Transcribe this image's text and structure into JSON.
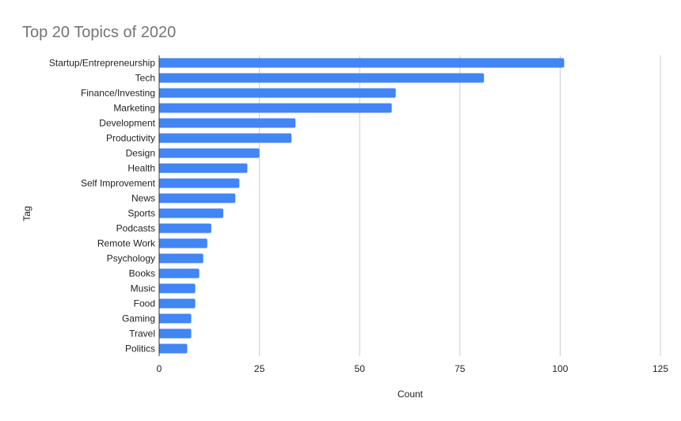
{
  "chart_data": {
    "type": "bar",
    "orientation": "horizontal",
    "title": "Top 20 Topics of 2020",
    "xlabel": "Count",
    "ylabel": "Tag",
    "xlim": [
      0,
      125
    ],
    "xticks": [
      0,
      25,
      50,
      75,
      100,
      125
    ],
    "grid": true,
    "legend": "none",
    "categories": [
      "Startup/Entrepreneurship",
      "Tech",
      "Finance/Investing",
      "Marketing",
      "Development",
      "Productivity",
      "Design",
      "Health",
      "Self Improvement",
      "News",
      "Sports",
      "Podcasts",
      "Remote Work",
      "Psychology",
      "Books",
      "Music",
      "Food",
      "Gaming",
      "Travel",
      "Politics"
    ],
    "values": [
      101,
      81,
      59,
      58,
      34,
      33,
      25,
      22,
      20,
      19,
      16,
      13,
      12,
      11,
      10,
      9,
      9,
      8,
      8,
      7
    ]
  },
  "colors": {
    "bar": "#4285f4",
    "gridline": "#cccccc",
    "axis": "#333333",
    "title": "#757575",
    "text": "#222222"
  }
}
